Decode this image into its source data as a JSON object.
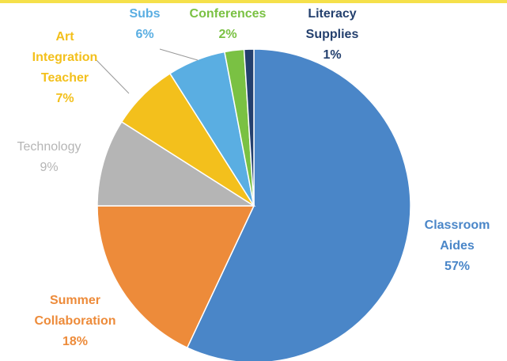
{
  "chart_data": {
    "type": "pie",
    "categories": [
      "Classroom Aides",
      "Summer Collaboration",
      "Technology",
      "Art Integration Teacher",
      "Subs",
      "Conferences",
      "Literacy Supplies"
    ],
    "values": [
      57,
      18,
      9,
      7,
      6,
      2,
      1
    ],
    "value_labels": [
      "57%",
      "18%",
      "9%",
      "7%",
      "6%",
      "2%",
      "1%"
    ],
    "colors": [
      "#4a86c8",
      "#ed8b3a",
      "#b5b5b5",
      "#f3c01c",
      "#5aaee2",
      "#7ac143",
      "#24406e"
    ]
  }
}
